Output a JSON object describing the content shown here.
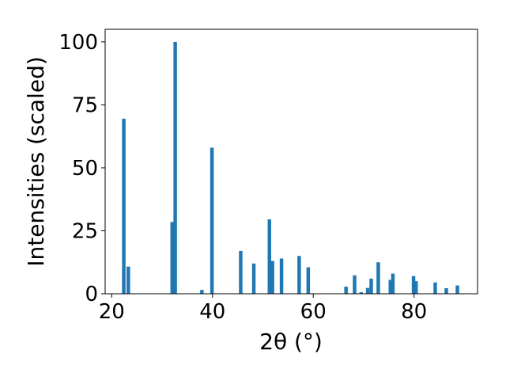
{
  "chart_data": {
    "type": "bar",
    "xlabel": "2θ (°)",
    "ylabel": "Intensities (scaled)",
    "xlim": [
      18.7,
      92.6
    ],
    "ylim": [
      0,
      105
    ],
    "xticks": [
      20,
      40,
      60,
      80
    ],
    "yticks": [
      0,
      25,
      50,
      75,
      100
    ],
    "bar_width": 0.7,
    "grid": false,
    "x": [
      22.4,
      23.3,
      32.0,
      32.6,
      37.9,
      39.9,
      45.6,
      48.2,
      51.3,
      51.9,
      53.7,
      57.2,
      59.0,
      66.5,
      68.2,
      69.5,
      70.8,
      71.5,
      72.9,
      75.3,
      75.8,
      79.9,
      80.4,
      84.2,
      86.4,
      88.6
    ],
    "values": [
      69.5,
      10.8,
      28.5,
      100,
      1.5,
      58,
      17,
      12,
      29.5,
      13,
      14,
      15,
      10.5,
      2.8,
      7.3,
      0.6,
      2.3,
      6,
      12.5,
      5.5,
      8,
      7,
      5,
      4.5,
      2.2,
      3.3
    ],
    "color": "#1f77b4"
  }
}
